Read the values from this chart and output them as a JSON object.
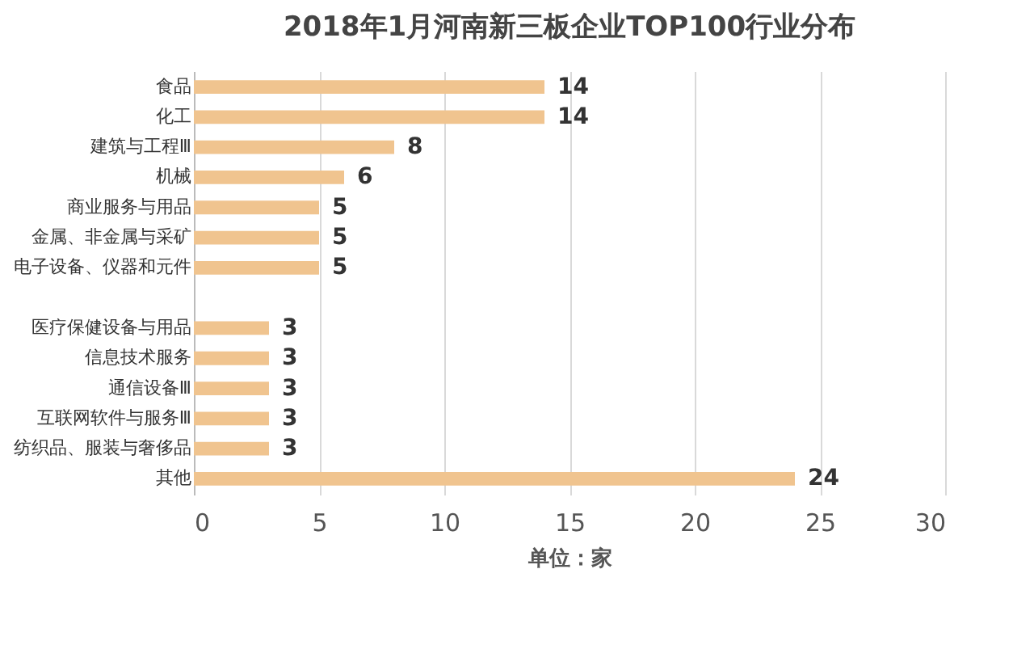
{
  "chart_data": {
    "type": "bar",
    "orientation": "horizontal",
    "title": "2018年1月河南新三板企业TOP100行业分布",
    "xlabel": "单位：家",
    "categories": [
      "食品",
      "化工",
      "建筑与工程Ⅲ",
      "机械",
      "商业服务与用品",
      "金属、非金属与采矿",
      "电子设备、仪器和元件",
      null,
      "医疗保健设备与用品",
      "信息技术服务",
      "通信设备Ⅲ",
      "互联网软件与服务Ⅲ",
      "纺织品、服装与奢侈品",
      "其他"
    ],
    "values": [
      14,
      14,
      8,
      6,
      5,
      5,
      5,
      null,
      3,
      3,
      3,
      3,
      3,
      24
    ],
    "color": "#f0c48f",
    "xlim": [
      0,
      30
    ],
    "xticks": [
      0,
      5,
      10,
      15,
      20,
      25,
      30
    ],
    "grid": "x",
    "data_labels": true
  }
}
